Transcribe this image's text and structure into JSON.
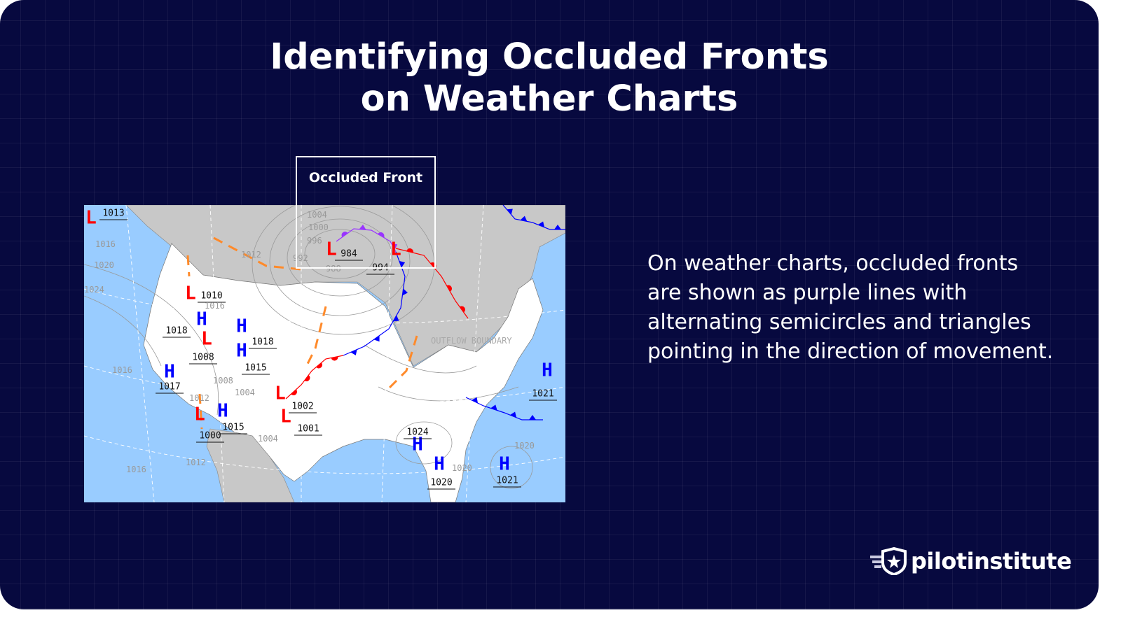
{
  "title": {
    "line1": "Identifying Occluded Fronts",
    "line2": "on Weather Charts"
  },
  "highlight": {
    "label": "Occluded Front"
  },
  "description": "On weather charts, occluded fronts are shown as purple lines with alternating semicircles and triangles pointing in the direction of movement.",
  "brand": {
    "name": "pilotinstitute"
  },
  "colors": {
    "background": "#07093f",
    "ocean": "#99ccff",
    "land_foreign": "#c8c8c8",
    "land_us": "#ffffff",
    "occluded_front": "#9933ff",
    "cold_front": "#0000ff",
    "warm_front": "#ff0000",
    "trough": "#ff8a2a",
    "high": "#0000ff",
    "low": "#ff0000"
  },
  "map": {
    "pressure_centers": [
      {
        "type": "L",
        "value": "1013"
      },
      {
        "type": "L",
        "value": "984"
      },
      {
        "type": "L",
        "value": "994"
      },
      {
        "type": "L",
        "value": "1010"
      },
      {
        "type": "H",
        "value": "1018"
      },
      {
        "type": "H",
        "value": ""
      },
      {
        "type": "L",
        "value": "1008"
      },
      {
        "type": "H",
        "value": "1018"
      },
      {
        "type": "H",
        "value": "1015"
      },
      {
        "type": "H",
        "value": "1017"
      },
      {
        "type": "L",
        "value": "1000"
      },
      {
        "type": "H",
        "value": "1015"
      },
      {
        "type": "L",
        "value": "1002"
      },
      {
        "type": "L",
        "value": "1001"
      },
      {
        "type": "H",
        "value": "1024"
      },
      {
        "type": "H",
        "value": "1020"
      },
      {
        "type": "H",
        "value": "1021"
      },
      {
        "type": "H",
        "value": "1021"
      }
    ],
    "isobar_labels": [
      "1004",
      "1000",
      "996",
      "992",
      "988",
      "1016",
      "1020",
      "1024",
      "1012",
      "1016",
      "1016",
      "1012",
      "1008",
      "1004",
      "1004",
      "1020",
      "1020",
      "1016",
      "1012"
    ],
    "annotation": "OUTFLOW BOUNDARY"
  }
}
